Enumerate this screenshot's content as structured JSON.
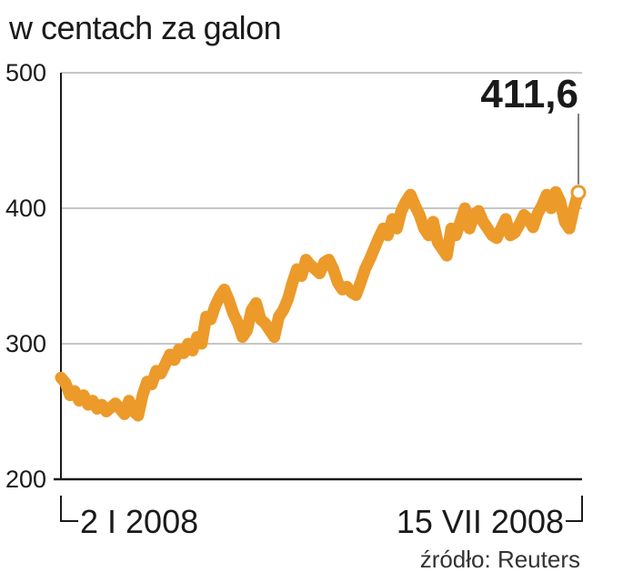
{
  "title": "w centach za galon",
  "source": "źródło: Reuters",
  "colors": {
    "line": "#ec9a2a",
    "grid": "#b3b3b3",
    "axis": "#1a1a1a"
  },
  "chart_data": {
    "type": "line",
    "ylabel": "w centach za galon",
    "ylim": [
      200,
      500
    ],
    "yticks": [
      "200",
      "300",
      "400",
      "500"
    ],
    "x_labels": [
      "2 I 2008",
      "15 VII 2008"
    ],
    "last_value_label": "411,6",
    "grid": "horizontal",
    "series": [
      {
        "values": [
          275,
          271,
          262,
          265,
          258,
          262,
          255,
          258,
          252,
          255,
          250,
          253,
          256,
          252,
          248,
          258,
          250,
          247,
          262,
          272,
          270,
          280,
          278,
          285,
          292,
          288,
          296,
          293,
          300,
          295,
          305,
          300,
          320,
          318,
          328,
          335,
          340,
          332,
          322,
          315,
          305,
          310,
          325,
          330,
          318,
          315,
          310,
          305,
          320,
          325,
          333,
          345,
          355,
          350,
          362,
          358,
          355,
          352,
          360,
          362,
          355,
          345,
          340,
          342,
          338,
          336,
          345,
          355,
          362,
          370,
          378,
          385,
          380,
          392,
          385,
          398,
          405,
          410,
          402,
          395,
          385,
          380,
          390,
          375,
          370,
          365,
          385,
          380,
          390,
          400,
          385,
          395,
          398,
          390,
          385,
          380,
          378,
          385,
          392,
          380,
          382,
          388,
          395,
          392,
          386,
          396,
          402,
          410,
          400,
          412,
          405,
          390,
          385,
          400,
          411.6
        ]
      }
    ]
  }
}
